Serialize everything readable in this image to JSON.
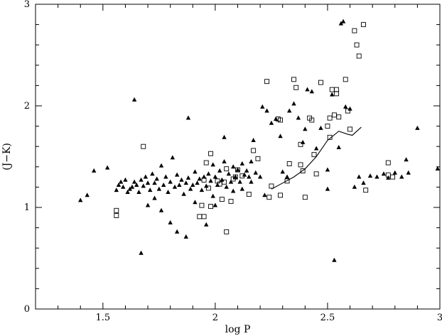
{
  "chart_data": {
    "type": "scatter",
    "xlabel": "log P",
    "ylabel": "(J−K)",
    "xlim": [
      1.2,
      3.0
    ],
    "ylim": [
      0,
      3
    ],
    "x_major_ticks": [
      1.5,
      2,
      2.5,
      3
    ],
    "x_major_labels": [
      "1.5",
      "2",
      "2.5",
      "3"
    ],
    "y_major_ticks": [
      0,
      1,
      2,
      3
    ],
    "y_major_labels": [
      "0",
      "1",
      "2",
      "3"
    ],
    "x_minor_step": 0.1,
    "y_minor_step": 0.2,
    "grid": false,
    "series": [
      {
        "marker": "filled-triangle",
        "points": [
          [
            1.4,
            1.07
          ],
          [
            1.43,
            1.12
          ],
          [
            1.46,
            1.36
          ],
          [
            1.52,
            1.39
          ],
          [
            1.56,
            1.17
          ],
          [
            1.57,
            1.22
          ],
          [
            1.58,
            1.25
          ],
          [
            1.59,
            1.2
          ],
          [
            1.6,
            1.27
          ],
          [
            1.61,
            1.15
          ],
          [
            1.62,
            1.18
          ],
          [
            1.63,
            1.2
          ],
          [
            1.64,
            1.25
          ],
          [
            1.64,
            2.06
          ],
          [
            1.65,
            1.22
          ],
          [
            1.66,
            1.15
          ],
          [
            1.67,
            1.27
          ],
          [
            1.67,
            0.55
          ],
          [
            1.68,
            1.21
          ],
          [
            1.69,
            1.3
          ],
          [
            1.7,
            1.24
          ],
          [
            1.7,
            1.02
          ],
          [
            1.71,
            1.17
          ],
          [
            1.72,
            1.33
          ],
          [
            1.73,
            1.24
          ],
          [
            1.73,
            1.09
          ],
          [
            1.74,
            1.28
          ],
          [
            1.75,
            1.18
          ],
          [
            1.76,
            1.41
          ],
          [
            1.76,
            0.97
          ],
          [
            1.77,
            1.22
          ],
          [
            1.78,
            1.3
          ],
          [
            1.79,
            1.15
          ],
          [
            1.8,
            1.25
          ],
          [
            1.8,
            0.85
          ],
          [
            1.81,
            1.49
          ],
          [
            1.82,
            1.2
          ],
          [
            1.83,
            1.32
          ],
          [
            1.83,
            0.76
          ],
          [
            1.84,
            1.22
          ],
          [
            1.85,
            1.27
          ],
          [
            1.86,
            1.13
          ],
          [
            1.87,
            1.24
          ],
          [
            1.87,
            0.71
          ],
          [
            1.88,
            1.29
          ],
          [
            1.88,
            1.88
          ],
          [
            1.89,
            1.18
          ],
          [
            1.9,
            1.22
          ],
          [
            1.91,
            1.35
          ],
          [
            1.91,
            1.05
          ],
          [
            1.92,
            1.24
          ],
          [
            1.93,
            1.28
          ],
          [
            1.94,
            1.17
          ],
          [
            1.95,
            1.3
          ],
          [
            1.96,
            1.21
          ],
          [
            1.96,
            0.83
          ],
          [
            1.97,
            1.33
          ],
          [
            1.98,
            1.26
          ],
          [
            1.99,
            1.11
          ],
          [
            1.99,
            1.42
          ],
          [
            2.0,
            1.3
          ],
          [
            2.0,
            1.02
          ],
          [
            2.01,
            1.22
          ],
          [
            2.02,
            1.36
          ],
          [
            2.03,
            1.27
          ],
          [
            2.04,
            1.45
          ],
          [
            2.04,
            1.69
          ],
          [
            2.05,
            1.2
          ],
          [
            2.06,
            1.33
          ],
          [
            2.07,
            1.25
          ],
          [
            2.08,
            1.4
          ],
          [
            2.08,
            1.16
          ],
          [
            2.09,
            1.3
          ],
          [
            2.1,
            1.37
          ],
          [
            2.11,
            1.25
          ],
          [
            2.12,
            1.18
          ],
          [
            2.12,
            1.43
          ],
          [
            2.13,
            1.32
          ],
          [
            2.14,
            1.36
          ],
          [
            2.15,
            1.3
          ],
          [
            2.16,
            1.25
          ],
          [
            2.16,
            1.45
          ],
          [
            2.17,
            1.66
          ],
          [
            2.18,
            1.34
          ],
          [
            2.2,
            1.3
          ],
          [
            2.21,
            1.99
          ],
          [
            2.22,
            1.12
          ],
          [
            2.23,
            1.95
          ],
          [
            2.25,
            1.83
          ],
          [
            2.27,
            1.87
          ],
          [
            2.29,
            1.7
          ],
          [
            2.3,
            1.35
          ],
          [
            2.32,
            1.3
          ],
          [
            2.33,
            1.95
          ],
          [
            2.35,
            2.02
          ],
          [
            2.37,
            1.88
          ],
          [
            2.39,
            1.64
          ],
          [
            2.4,
            1.77
          ],
          [
            2.41,
            2.16
          ],
          [
            2.43,
            2.14
          ],
          [
            2.45,
            1.58
          ],
          [
            2.47,
            1.78
          ],
          [
            2.5,
            1.37
          ],
          [
            2.5,
            1.18
          ],
          [
            2.52,
            2.11
          ],
          [
            2.53,
            0.48
          ],
          [
            2.55,
            1.59
          ],
          [
            2.56,
            2.81
          ],
          [
            2.57,
            2.83
          ],
          [
            2.58,
            1.99
          ],
          [
            2.6,
            1.97
          ],
          [
            2.62,
            1.2
          ],
          [
            2.64,
            1.3
          ],
          [
            2.66,
            1.24
          ],
          [
            2.69,
            1.31
          ],
          [
            2.72,
            1.3
          ],
          [
            2.75,
            1.33
          ],
          [
            2.77,
            1.29
          ],
          [
            2.8,
            1.34
          ],
          [
            2.83,
            1.3
          ],
          [
            2.85,
            1.47
          ],
          [
            2.86,
            1.34
          ],
          [
            2.9,
            1.78
          ],
          [
            2.99,
            1.38
          ]
        ]
      },
      {
        "marker": "open-square",
        "points": [
          [
            1.56,
            0.97
          ],
          [
            1.56,
            0.92
          ],
          [
            1.68,
            1.6
          ],
          [
            1.93,
            0.91
          ],
          [
            1.94,
            1.02
          ],
          [
            1.95,
            1.27
          ],
          [
            1.95,
            0.91
          ],
          [
            1.96,
            1.44
          ],
          [
            1.97,
            1.19
          ],
          [
            1.98,
            1.53
          ],
          [
            1.98,
            1.01
          ],
          [
            2.01,
            1.26
          ],
          [
            2.02,
            1.23
          ],
          [
            2.03,
            1.08
          ],
          [
            2.04,
            1.25
          ],
          [
            2.05,
            1.38
          ],
          [
            2.05,
            0.76
          ],
          [
            2.07,
            1.06
          ],
          [
            2.08,
            1.28
          ],
          [
            2.09,
            1.3
          ],
          [
            2.1,
            1.37
          ],
          [
            2.12,
            1.31
          ],
          [
            2.15,
            1.13
          ],
          [
            2.17,
            1.56
          ],
          [
            2.19,
            1.48
          ],
          [
            2.23,
            2.24
          ],
          [
            2.24,
            1.1
          ],
          [
            2.25,
            1.21
          ],
          [
            2.28,
            1.87
          ],
          [
            2.29,
            1.86
          ],
          [
            2.29,
            1.12
          ],
          [
            2.32,
            1.26
          ],
          [
            2.33,
            1.43
          ],
          [
            2.35,
            2.26
          ],
          [
            2.36,
            2.18
          ],
          [
            2.38,
            1.62
          ],
          [
            2.38,
            1.42
          ],
          [
            2.39,
            1.36
          ],
          [
            2.4,
            1.1
          ],
          [
            2.42,
            1.88
          ],
          [
            2.43,
            1.86
          ],
          [
            2.44,
            1.52
          ],
          [
            2.45,
            1.33
          ],
          [
            2.47,
            2.23
          ],
          [
            2.5,
            1.8
          ],
          [
            2.51,
            1.88
          ],
          [
            2.51,
            1.69
          ],
          [
            2.52,
            2.16
          ],
          [
            2.53,
            1.91
          ],
          [
            2.54,
            2.16
          ],
          [
            2.54,
            2.12
          ],
          [
            2.55,
            1.89
          ],
          [
            2.58,
            2.26
          ],
          [
            2.59,
            1.95
          ],
          [
            2.6,
            1.77
          ],
          [
            2.62,
            2.74
          ],
          [
            2.63,
            2.6
          ],
          [
            2.64,
            2.49
          ],
          [
            2.66,
            2.8
          ],
          [
            2.67,
            1.17
          ],
          [
            2.77,
            1.44
          ],
          [
            2.77,
            1.32
          ],
          [
            2.79,
            1.3
          ]
        ]
      },
      {
        "marker": "line",
        "points": [
          [
            2.25,
            1.18
          ],
          [
            2.3,
            1.24
          ],
          [
            2.35,
            1.3
          ],
          [
            2.4,
            1.38
          ],
          [
            2.45,
            1.5
          ],
          [
            2.5,
            1.66
          ],
          [
            2.55,
            1.75
          ],
          [
            2.59,
            1.72
          ],
          [
            2.61,
            1.71
          ],
          [
            2.65,
            1.79
          ]
        ]
      }
    ]
  }
}
